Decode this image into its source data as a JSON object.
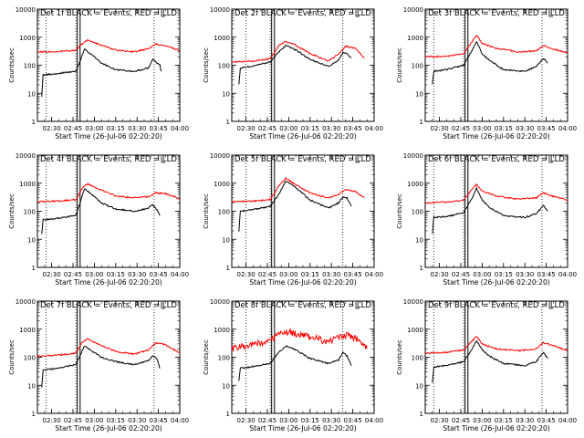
{
  "colors": {
    "events": "#000000",
    "lld": "#ff0000",
    "background": "#ffffff",
    "axis": "#000000"
  },
  "chart_data": [
    {
      "type": "line",
      "title": "Det 1f BLACK = Events, RED = LLD",
      "xlabel": "Start Time (26-Jul-06 02:20:20)",
      "ylabel": "Counts/sec",
      "ylog": true,
      "ylim": [
        1,
        10000
      ],
      "xlim": [
        "02:20",
        "04:00"
      ],
      "x_ticks": [
        "02:30",
        "02:45",
        "03:00",
        "03:15",
        "03:30",
        "03:45",
        "04:00"
      ],
      "y_ticks": [
        "1",
        "10",
        "100",
        "1000",
        "10000"
      ],
      "vlines_dotted": [
        "02:26",
        "02:47",
        "03:42"
      ],
      "vbox_solid": [
        "02:48",
        "02:50"
      ],
      "corner_mark": "L",
      "series": [
        {
          "name": "Events",
          "x": [
            "02:23",
            "02:24",
            "02:33",
            "02:47",
            "02:50",
            "02:53",
            "02:58",
            "03:05",
            "03:15",
            "03:28",
            "03:38",
            "03:41",
            "03:44",
            "03:46",
            "03:47"
          ],
          "values": [
            8,
            45,
            50,
            60,
            140,
            380,
            240,
            120,
            70,
            60,
            80,
            160,
            120,
            100,
            60
          ]
        },
        {
          "name": "LLD",
          "x": [
            "02:20",
            "02:35",
            "02:47",
            "02:51",
            "02:55",
            "03:05",
            "03:15",
            "03:28",
            "03:38",
            "03:43",
            "03:50",
            "04:00"
          ],
          "values": [
            300,
            310,
            340,
            550,
            780,
            520,
            350,
            300,
            390,
            560,
            500,
            330
          ]
        }
      ]
    },
    {
      "type": "line",
      "title": "Det 2f BLACK = Events, RED = LLD",
      "xlabel": "Start Time (26-Jul-06 02:20:20)",
      "ylabel": "Counts/sec",
      "ylog": true,
      "ylim": [
        1,
        10000
      ],
      "xlim": [
        "02:20",
        "04:00"
      ],
      "x_ticks": [
        "02:30",
        "02:45",
        "03:00",
        "03:15",
        "03:30",
        "03:45",
        "04:00"
      ],
      "y_ticks": [
        "1",
        "10",
        "100",
        "1000",
        "10000"
      ],
      "vlines_dotted": [
        "02:30",
        "02:47",
        "03:38"
      ],
      "vbox_solid": [
        "02:48",
        "02:50"
      ],
      "corner_mark": "L",
      "series": [
        {
          "name": "Events",
          "x": [
            "02:25",
            "02:26",
            "02:33",
            "02:47",
            "02:53",
            "02:58",
            "03:05",
            "03:15",
            "03:28",
            "03:35",
            "03:38",
            "03:41",
            "03:44"
          ],
          "values": [
            20,
            80,
            90,
            130,
            300,
            500,
            350,
            160,
            90,
            150,
            280,
            260,
            180
          ]
        },
        {
          "name": "LLD",
          "x": [
            "02:20",
            "02:35",
            "02:47",
            "02:53",
            "02:58",
            "03:05",
            "03:15",
            "03:28",
            "03:35",
            "03:40",
            "03:47",
            "03:53"
          ],
          "values": [
            130,
            140,
            170,
            500,
            700,
            520,
            260,
            140,
            250,
            480,
            400,
            180
          ]
        }
      ]
    },
    {
      "type": "line",
      "title": "Det 3f BLACK = Events, RED = LLD",
      "xlabel": "Start Time (26-Jul-06 02:20:20)",
      "ylabel": "Counts/sec",
      "ylog": true,
      "ylim": [
        1,
        10000
      ],
      "xlim": [
        "02:20",
        "04:00"
      ],
      "x_ticks": [
        "02:30",
        "02:45",
        "03:00",
        "03:15",
        "03:30",
        "03:45",
        "04:00"
      ],
      "y_ticks": [
        "1",
        "10",
        "100",
        "1000",
        "10000"
      ],
      "vlines_dotted": [
        "02:26",
        "02:47",
        "03:42"
      ],
      "vbox_solid": [
        "02:48",
        "02:50"
      ],
      "corner_mark": "L",
      "series": [
        {
          "name": "Events",
          "x": [
            "02:25",
            "02:26",
            "02:35",
            "02:47",
            "02:53",
            "02:56",
            "03:00",
            "03:05",
            "03:15",
            "03:30",
            "03:38",
            "03:43",
            "03:46"
          ],
          "values": [
            20,
            60,
            70,
            100,
            350,
            700,
            250,
            150,
            70,
            60,
            90,
            180,
            120
          ]
        },
        {
          "name": "LLD",
          "x": [
            "02:20",
            "02:35",
            "02:47",
            "02:53",
            "02:56",
            "03:00",
            "03:10",
            "03:25",
            "03:38",
            "03:43",
            "03:50",
            "04:00"
          ],
          "values": [
            200,
            210,
            260,
            700,
            1200,
            600,
            400,
            300,
            320,
            500,
            380,
            280
          ]
        }
      ]
    },
    {
      "type": "line",
      "title": "Det 4f BLACK = Events, RED = LLD",
      "xlabel": "Start Time (26-Jul-06 02:20:20)",
      "ylabel": "Counts/sec",
      "ylog": true,
      "ylim": [
        1,
        10000
      ],
      "xlim": [
        "02:20",
        "04:00"
      ],
      "x_ticks": [
        "02:30",
        "02:45",
        "03:00",
        "03:15",
        "03:30",
        "03:45",
        "04:00"
      ],
      "y_ticks": [
        "1",
        "10",
        "100",
        "1000",
        "10000"
      ],
      "vlines_dotted": [
        "02:26",
        "02:47",
        "03:42"
      ],
      "vbox_solid": [
        "02:48",
        "02:50"
      ],
      "corner_mark": "L",
      "series": [
        {
          "name": "Events",
          "x": [
            "02:23",
            "02:24",
            "02:33",
            "02:47",
            "02:50",
            "02:53",
            "02:58",
            "03:05",
            "03:15",
            "03:28",
            "03:38",
            "03:41",
            "03:44",
            "03:46"
          ],
          "values": [
            15,
            50,
            55,
            70,
            200,
            650,
            400,
            200,
            120,
            100,
            130,
            170,
            110,
            70
          ]
        },
        {
          "name": "LLD",
          "x": [
            "02:20",
            "02:35",
            "02:47",
            "02:51",
            "02:55",
            "03:05",
            "03:15",
            "03:28",
            "03:38",
            "03:43",
            "03:50",
            "04:00"
          ],
          "values": [
            220,
            230,
            260,
            600,
            950,
            560,
            350,
            300,
            330,
            450,
            420,
            280
          ]
        }
      ]
    },
    {
      "type": "line",
      "title": "Det 5f BLACK = Events, RED = LLD",
      "xlabel": "Start Time (26-Jul-06 02:20:20)",
      "ylabel": "Counts/sec",
      "ylog": true,
      "ylim": [
        1,
        10000
      ],
      "xlim": [
        "02:20",
        "04:00"
      ],
      "x_ticks": [
        "02:30",
        "02:45",
        "03:00",
        "03:15",
        "03:30",
        "03:45",
        "04:00"
      ],
      "y_ticks": [
        "1",
        "10",
        "100",
        "1000",
        "10000"
      ],
      "vlines_dotted": [
        "02:30",
        "02:47",
        "03:38"
      ],
      "vbox_solid": [
        "02:48",
        "02:50"
      ],
      "corner_mark": "L",
      "series": [
        {
          "name": "Events",
          "x": [
            "02:25",
            "02:26",
            "02:33",
            "02:47",
            "02:53",
            "02:58",
            "03:05",
            "03:15",
            "03:28",
            "03:35",
            "03:38",
            "03:41",
            "03:44"
          ],
          "values": [
            20,
            100,
            110,
            150,
            400,
            1200,
            700,
            250,
            130,
            200,
            320,
            300,
            150
          ]
        },
        {
          "name": "LLD",
          "x": [
            "02:20",
            "02:35",
            "02:47",
            "02:53",
            "02:58",
            "03:05",
            "03:15",
            "03:28",
            "03:35",
            "03:40",
            "03:47",
            "03:53"
          ],
          "values": [
            220,
            230,
            260,
            800,
            1500,
            900,
            450,
            300,
            400,
            600,
            500,
            300
          ]
        }
      ]
    },
    {
      "type": "line",
      "title": "Det 6f BLACK = Events, RED = LLD",
      "xlabel": "Start Time (26-Jul-06 02:20:20)",
      "ylabel": "Counts/sec",
      "ylog": true,
      "ylim": [
        1,
        10000
      ],
      "xlim": [
        "02:20",
        "04:00"
      ],
      "x_ticks": [
        "02:30",
        "02:45",
        "03:00",
        "03:15",
        "03:30",
        "03:45",
        "04:00"
      ],
      "y_ticks": [
        "1",
        "10",
        "100",
        "1000",
        "10000"
      ],
      "vlines_dotted": [
        "02:26",
        "02:47",
        "03:42"
      ],
      "vbox_solid": [
        "02:48",
        "02:50"
      ],
      "corner_mark": "L",
      "series": [
        {
          "name": "Events",
          "x": [
            "02:25",
            "02:26",
            "02:35",
            "02:47",
            "02:53",
            "02:56",
            "03:00",
            "03:05",
            "03:15",
            "03:30",
            "03:38",
            "03:43",
            "03:46"
          ],
          "values": [
            15,
            60,
            65,
            90,
            300,
            650,
            250,
            140,
            70,
            60,
            80,
            160,
            100
          ]
        },
        {
          "name": "LLD",
          "x": [
            "02:20",
            "02:35",
            "02:47",
            "02:53",
            "02:56",
            "03:00",
            "03:10",
            "03:25",
            "03:38",
            "03:43",
            "03:50",
            "04:00"
          ],
          "values": [
            200,
            210,
            250,
            600,
            900,
            520,
            350,
            270,
            300,
            450,
            340,
            250
          ]
        }
      ]
    },
    {
      "type": "line",
      "title": "Det 7f BLACK = Events, RED = LLD",
      "xlabel": "Start Time (26-Jul-06 02:20:20)",
      "ylabel": "Counts/sec",
      "ylog": true,
      "ylim": [
        1,
        10000
      ],
      "xlim": [
        "02:20",
        "04:00"
      ],
      "x_ticks": [
        "02:30",
        "02:45",
        "03:00",
        "03:15",
        "03:30",
        "03:45",
        "04:00"
      ],
      "y_ticks": [
        "1",
        "10",
        "100",
        "1000",
        "10000"
      ],
      "vlines_dotted": [
        "02:26",
        "02:47",
        "03:42"
      ],
      "vbox_solid": [
        "02:48",
        "02:50"
      ],
      "corner_mark": "L",
      "series": [
        {
          "name": "Events",
          "x": [
            "02:23",
            "02:24",
            "02:33",
            "02:47",
            "02:50",
            "02:53",
            "02:58",
            "03:05",
            "03:15",
            "03:28",
            "03:38",
            "03:41",
            "03:44",
            "03:46"
          ],
          "values": [
            8,
            35,
            40,
            55,
            120,
            250,
            170,
            100,
            70,
            55,
            75,
            110,
            90,
            40
          ]
        },
        {
          "name": "LLD",
          "x": [
            "02:20",
            "02:35",
            "02:47",
            "02:51",
            "02:55",
            "03:05",
            "03:15",
            "03:28",
            "03:38",
            "03:43",
            "03:50",
            "04:00"
          ],
          "values": [
            110,
            120,
            140,
            320,
            450,
            260,
            160,
            130,
            180,
            320,
            280,
            140
          ]
        }
      ]
    },
    {
      "type": "line",
      "title": "Det 8f BLACK = Events, RED = LLD",
      "xlabel": "Start Time (26-Jul-06 02:20:20)",
      "ylabel": "Counts/sec",
      "ylog": true,
      "ylim": [
        1,
        10000
      ],
      "xlim": [
        "02:20",
        "04:00"
      ],
      "x_ticks": [
        "02:30",
        "02:45",
        "03:00",
        "03:15",
        "03:30",
        "03:45",
        "04:00"
      ],
      "y_ticks": [
        "1",
        "10",
        "100",
        "1000",
        "10000"
      ],
      "vlines_dotted": [
        "02:30",
        "02:47",
        "03:38"
      ],
      "vbox_solid": [
        "02:48",
        "02:50"
      ],
      "corner_mark": "L",
      "series": [
        {
          "name": "Events",
          "x": [
            "02:25",
            "02:26",
            "02:33",
            "02:47",
            "02:53",
            "02:58",
            "03:05",
            "03:15",
            "03:28",
            "03:35",
            "03:38",
            "03:41",
            "03:44"
          ],
          "values": [
            15,
            40,
            45,
            60,
            150,
            250,
            180,
            90,
            60,
            80,
            150,
            110,
            50
          ]
        },
        {
          "name": "LLD",
          "x": [
            "02:20",
            "02:30",
            "02:40",
            "02:47",
            "02:53",
            "03:00",
            "03:10",
            "03:20",
            "03:28",
            "03:35",
            "03:42",
            "03:50",
            "03:55"
          ],
          "values": [
            200,
            250,
            320,
            400,
            650,
            800,
            600,
            450,
            350,
            500,
            600,
            380,
            200
          ]
        }
      ]
    },
    {
      "type": "line",
      "title": "Det 9f BLACK = Events, RED = LLD",
      "xlabel": "Start Time (26-Jul-06 02:20:20)",
      "ylabel": "Counts/sec",
      "ylog": true,
      "ylim": [
        1,
        10000
      ],
      "xlim": [
        "02:20",
        "04:00"
      ],
      "x_ticks": [
        "02:30",
        "02:45",
        "03:00",
        "03:15",
        "03:30",
        "03:45",
        "04:00"
      ],
      "y_ticks": [
        "1",
        "10",
        "100",
        "1000",
        "10000"
      ],
      "vlines_dotted": [
        "02:26",
        "02:47",
        "03:42"
      ],
      "vbox_solid": [
        "02:48",
        "02:50"
      ],
      "corner_mark": "L",
      "series": [
        {
          "name": "Events",
          "x": [
            "02:25",
            "02:26",
            "02:35",
            "02:47",
            "02:53",
            "02:56",
            "03:00",
            "03:05",
            "03:15",
            "03:30",
            "03:38",
            "03:43",
            "03:46"
          ],
          "values": [
            12,
            45,
            50,
            70,
            200,
            400,
            180,
            110,
            60,
            50,
            70,
            150,
            90
          ]
        },
        {
          "name": "LLD",
          "x": [
            "02:20",
            "02:35",
            "02:47",
            "02:53",
            "02:56",
            "03:00",
            "03:10",
            "03:25",
            "03:38",
            "03:43",
            "03:50",
            "04:00"
          ],
          "values": [
            140,
            150,
            180,
            380,
            550,
            300,
            200,
            170,
            200,
            330,
            260,
            170
          ]
        }
      ]
    }
  ]
}
